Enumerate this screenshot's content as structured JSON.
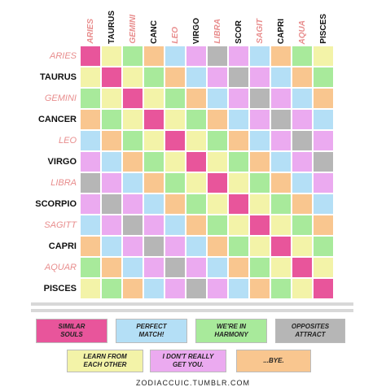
{
  "chart_data": {
    "type": "heatmap",
    "title": "",
    "column_labels": [
      "ARIES",
      "TAURUS",
      "GEMINI",
      "CANC",
      "LEO",
      "VIRGO",
      "LIBRA",
      "SCOR",
      "SAGIT",
      "CAPRI",
      "AQUA",
      "PISCES"
    ],
    "row_labels": [
      "ARIES",
      "TAURUS",
      "GEMINI",
      "CANCER",
      "LEO",
      "VIRGO",
      "LIBRA",
      "SCORPIO",
      "SAGITT",
      "CAPRI",
      "AQUAR",
      "PISCES"
    ],
    "fire_air_signs": [
      true,
      false,
      true,
      false,
      true,
      false,
      true,
      false,
      true,
      false,
      true,
      false
    ],
    "categories": [
      "SIMILAR SOULS",
      "PERFECT MATCH!",
      "WE'RE IN HARMONY",
      "OPPOSITES ATTRACT",
      "LEARN FROM EACH OTHER",
      "I DON'T REALLY GET YOU.",
      "...BYE."
    ],
    "category_colors": [
      "#e8559b",
      "#b4dff6",
      "#a8ea9b",
      "#b6b6b6",
      "#f3f3a8",
      "#ebaaf0",
      "#f9c68f"
    ],
    "matrix": [
      [
        0,
        4,
        2,
        6,
        1,
        5,
        3,
        5,
        1,
        6,
        2,
        4
      ],
      [
        4,
        0,
        4,
        2,
        6,
        1,
        5,
        3,
        5,
        1,
        6,
        2
      ],
      [
        2,
        4,
        0,
        4,
        2,
        6,
        1,
        5,
        3,
        5,
        1,
        6
      ],
      [
        6,
        2,
        4,
        0,
        4,
        2,
        6,
        1,
        5,
        3,
        5,
        1
      ],
      [
        1,
        6,
        2,
        4,
        0,
        4,
        2,
        6,
        1,
        5,
        3,
        5
      ],
      [
        5,
        1,
        6,
        2,
        4,
        0,
        4,
        2,
        6,
        1,
        5,
        3
      ],
      [
        3,
        5,
        1,
        6,
        2,
        4,
        0,
        4,
        2,
        6,
        1,
        5
      ],
      [
        5,
        3,
        5,
        1,
        6,
        2,
        4,
        0,
        4,
        2,
        6,
        1
      ],
      [
        1,
        5,
        3,
        5,
        1,
        6,
        2,
        4,
        0,
        4,
        2,
        6
      ],
      [
        6,
        1,
        5,
        3,
        5,
        1,
        6,
        2,
        4,
        0,
        4,
        2
      ],
      [
        2,
        6,
        1,
        5,
        3,
        5,
        1,
        6,
        2,
        4,
        0,
        4
      ],
      [
        4,
        2,
        6,
        1,
        5,
        3,
        5,
        1,
        6,
        2,
        4,
        0
      ]
    ],
    "legend": [
      {
        "label": "SIMILAR\nSOULS",
        "color": "#e8559b"
      },
      {
        "label": "PERFECT\nMATCH!",
        "color": "#b4dff6"
      },
      {
        "label": "WE'RE IN\nHARMONY",
        "color": "#a8ea9b"
      },
      {
        "label": "OPPOSITES\nATTRACT",
        "color": "#b6b6b6"
      },
      {
        "label": "LEARN FROM\nEACH OTHER",
        "color": "#f3f3a8"
      },
      {
        "label": "I DON'T REALLY\nGET YOU.",
        "color": "#ebaaf0"
      },
      {
        "label": "...BYE.",
        "color": "#f9c68f"
      }
    ],
    "label_colors": {
      "fire_air": "#e88d8d",
      "earth_water": "#111111"
    }
  },
  "footer": "ZODIACCUIC.TUMBLR.COM"
}
